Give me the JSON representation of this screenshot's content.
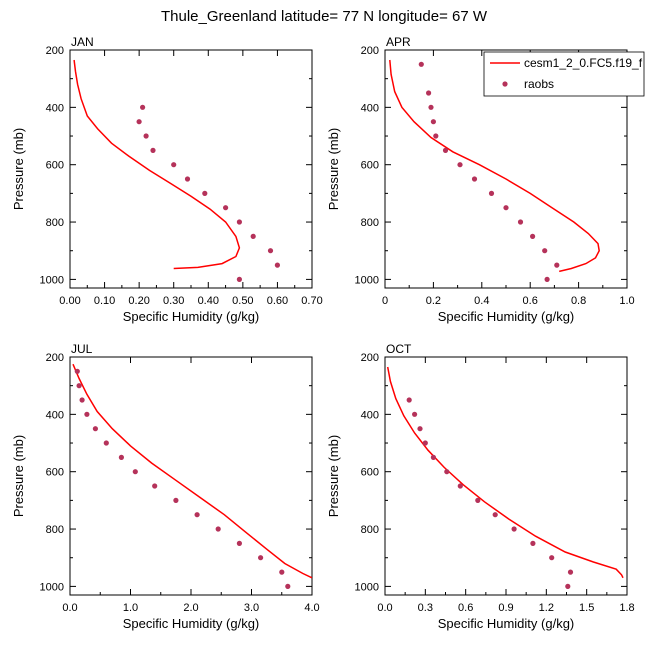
{
  "title": "Thule_Greenland  latitude= 77 N longitude= 67 W",
  "colors": {
    "model": "#ff0000",
    "obs": "#b5325a"
  },
  "legend": {
    "model_label": "cesm1_2_0.FC5.f19_f",
    "obs_label": "raobs",
    "placement": "top-right of APR panel"
  },
  "chart_data": [
    {
      "type": "line",
      "panel_label": "JAN",
      "xlabel": "Specific Humidity (g/kg)",
      "ylabel": "Pressure (mb)",
      "xlim": [
        0,
        0.7
      ],
      "ylim": [
        1030,
        200
      ],
      "xticks": [
        "0.00",
        "0.10",
        "0.20",
        "0.30",
        "0.40",
        "0.50",
        "0.60",
        "0.70"
      ],
      "xtick_values": [
        0,
        0.1,
        0.2,
        0.3,
        0.4,
        0.5,
        0.6,
        0.7
      ],
      "yticks": [
        "200",
        "400",
        "600",
        "800",
        "1000"
      ],
      "ytick_values": [
        200,
        400,
        600,
        800,
        1000
      ],
      "series": [
        {
          "name": "cesm1_2_0.FC5.f19_f",
          "kind": "line",
          "points": [
            [
              0.012,
              235
            ],
            [
              0.016,
              275
            ],
            [
              0.022,
              320
            ],
            [
              0.032,
              370
            ],
            [
              0.05,
              430
            ],
            [
              0.08,
              475
            ],
            [
              0.12,
              525
            ],
            [
              0.17,
              570
            ],
            [
              0.23,
              620
            ],
            [
              0.29,
              665
            ],
            [
              0.35,
              710
            ],
            [
              0.405,
              755
            ],
            [
              0.45,
              800
            ],
            [
              0.48,
              850
            ],
            [
              0.49,
              890
            ],
            [
              0.48,
              920
            ],
            [
              0.44,
              945
            ],
            [
              0.37,
              958
            ],
            [
              0.3,
              962
            ]
          ]
        },
        {
          "name": "raobs",
          "kind": "scatter",
          "points": [
            [
              0.21,
              400
            ],
            [
              0.2,
              450
            ],
            [
              0.22,
              500
            ],
            [
              0.24,
              550
            ],
            [
              0.3,
              600
            ],
            [
              0.34,
              650
            ],
            [
              0.39,
              700
            ],
            [
              0.45,
              750
            ],
            [
              0.49,
              800
            ],
            [
              0.53,
              850
            ],
            [
              0.58,
              900
            ],
            [
              0.6,
              950
            ],
            [
              0.49,
              1000
            ]
          ]
        }
      ]
    },
    {
      "type": "line",
      "panel_label": "APR",
      "xlabel": "Specific Humidity (g/kg)",
      "ylabel": "Pressure (mb)",
      "xlim": [
        0,
        1.0
      ],
      "ylim": [
        1030,
        200
      ],
      "xticks": [
        "0",
        "0.2",
        "0.4",
        "0.6",
        "0.8",
        "1.0"
      ],
      "xtick_values": [
        0,
        0.2,
        0.4,
        0.6,
        0.8,
        1.0
      ],
      "yticks": [
        "200",
        "400",
        "600",
        "800",
        "1000"
      ],
      "ytick_values": [
        200,
        400,
        600,
        800,
        1000
      ],
      "series": [
        {
          "name": "cesm1_2_0.FC5.f19_f",
          "kind": "line",
          "points": [
            [
              0.02,
              235
            ],
            [
              0.025,
              285
            ],
            [
              0.04,
              345
            ],
            [
              0.07,
              400
            ],
            [
              0.12,
              450
            ],
            [
              0.19,
              505
            ],
            [
              0.28,
              555
            ],
            [
              0.39,
              600
            ],
            [
              0.5,
              650
            ],
            [
              0.6,
              700
            ],
            [
              0.69,
              750
            ],
            [
              0.78,
              800
            ],
            [
              0.84,
              840
            ],
            [
              0.88,
              875
            ],
            [
              0.885,
              900
            ],
            [
              0.87,
              925
            ],
            [
              0.83,
              945
            ],
            [
              0.77,
              962
            ],
            [
              0.72,
              972
            ]
          ]
        },
        {
          "name": "raobs",
          "kind": "scatter",
          "points": [
            [
              0.15,
              250
            ],
            [
              0.18,
              350
            ],
            [
              0.19,
              400
            ],
            [
              0.2,
              450
            ],
            [
              0.21,
              500
            ],
            [
              0.25,
              550
            ],
            [
              0.31,
              600
            ],
            [
              0.37,
              650
            ],
            [
              0.44,
              700
            ],
            [
              0.5,
              750
            ],
            [
              0.56,
              800
            ],
            [
              0.61,
              850
            ],
            [
              0.66,
              900
            ],
            [
              0.71,
              950
            ],
            [
              0.67,
              1000
            ]
          ]
        }
      ]
    },
    {
      "type": "line",
      "panel_label": "JUL",
      "xlabel": "Specific Humidity (g/kg)",
      "ylabel": "Pressure (mb)",
      "xlim": [
        0,
        4.0
      ],
      "ylim": [
        1030,
        200
      ],
      "xticks": [
        "0.0",
        "1.0",
        "2.0",
        "3.0",
        "4.0"
      ],
      "xtick_values": [
        0,
        1,
        2,
        3,
        4
      ],
      "yticks": [
        "200",
        "400",
        "600",
        "800",
        "1000"
      ],
      "ytick_values": [
        200,
        400,
        600,
        800,
        1000
      ],
      "series": [
        {
          "name": "cesm1_2_0.FC5.f19_f",
          "kind": "line",
          "points": [
            [
              0.05,
              225
            ],
            [
              0.15,
              275
            ],
            [
              0.28,
              330
            ],
            [
              0.45,
              390
            ],
            [
              0.7,
              450
            ],
            [
              1.0,
              510
            ],
            [
              1.35,
              570
            ],
            [
              1.75,
              630
            ],
            [
              2.15,
              690
            ],
            [
              2.55,
              750
            ],
            [
              2.9,
              810
            ],
            [
              3.25,
              870
            ],
            [
              3.55,
              920
            ],
            [
              3.85,
              955
            ],
            [
              4.0,
              970
            ]
          ]
        },
        {
          "name": "raobs",
          "kind": "scatter",
          "points": [
            [
              0.12,
              250
            ],
            [
              0.15,
              300
            ],
            [
              0.2,
              350
            ],
            [
              0.28,
              400
            ],
            [
              0.42,
              450
            ],
            [
              0.6,
              500
            ],
            [
              0.85,
              550
            ],
            [
              1.08,
              600
            ],
            [
              1.4,
              650
            ],
            [
              1.75,
              700
            ],
            [
              2.1,
              750
            ],
            [
              2.45,
              800
            ],
            [
              2.8,
              850
            ],
            [
              3.15,
              900
            ],
            [
              3.5,
              950
            ],
            [
              3.6,
              1000
            ]
          ]
        }
      ]
    },
    {
      "type": "line",
      "panel_label": "OCT",
      "xlabel": "Specific Humidity (g/kg)",
      "ylabel": "Pressure (mb)",
      "xlim": [
        0,
        1.8
      ],
      "ylim": [
        1030,
        200
      ],
      "xticks": [
        "0.0",
        "0.3",
        "0.6",
        "0.9",
        "1.2",
        "1.5",
        "1.8"
      ],
      "xtick_values": [
        0,
        0.3,
        0.6,
        0.9,
        1.2,
        1.5,
        1.8
      ],
      "yticks": [
        "200",
        "400",
        "600",
        "800",
        "1000"
      ],
      "ytick_values": [
        200,
        400,
        600,
        800,
        1000
      ],
      "series": [
        {
          "name": "cesm1_2_0.FC5.f19_f",
          "kind": "line",
          "points": [
            [
              0.02,
              235
            ],
            [
              0.04,
              285
            ],
            [
              0.08,
              345
            ],
            [
              0.14,
              405
            ],
            [
              0.22,
              465
            ],
            [
              0.32,
              525
            ],
            [
              0.44,
              585
            ],
            [
              0.58,
              645
            ],
            [
              0.74,
              705
            ],
            [
              0.92,
              765
            ],
            [
              1.12,
              825
            ],
            [
              1.34,
              880
            ],
            [
              1.55,
              915
            ],
            [
              1.72,
              940
            ],
            [
              1.76,
              960
            ],
            [
              1.77,
              970
            ]
          ]
        },
        {
          "name": "raobs",
          "kind": "scatter",
          "points": [
            [
              0.18,
              350
            ],
            [
              0.22,
              400
            ],
            [
              0.26,
              450
            ],
            [
              0.3,
              500
            ],
            [
              0.36,
              550
            ],
            [
              0.46,
              600
            ],
            [
              0.56,
              650
            ],
            [
              0.69,
              700
            ],
            [
              0.82,
              750
            ],
            [
              0.96,
              800
            ],
            [
              1.1,
              850
            ],
            [
              1.24,
              900
            ],
            [
              1.38,
              950
            ],
            [
              1.36,
              1000
            ]
          ]
        }
      ]
    }
  ]
}
